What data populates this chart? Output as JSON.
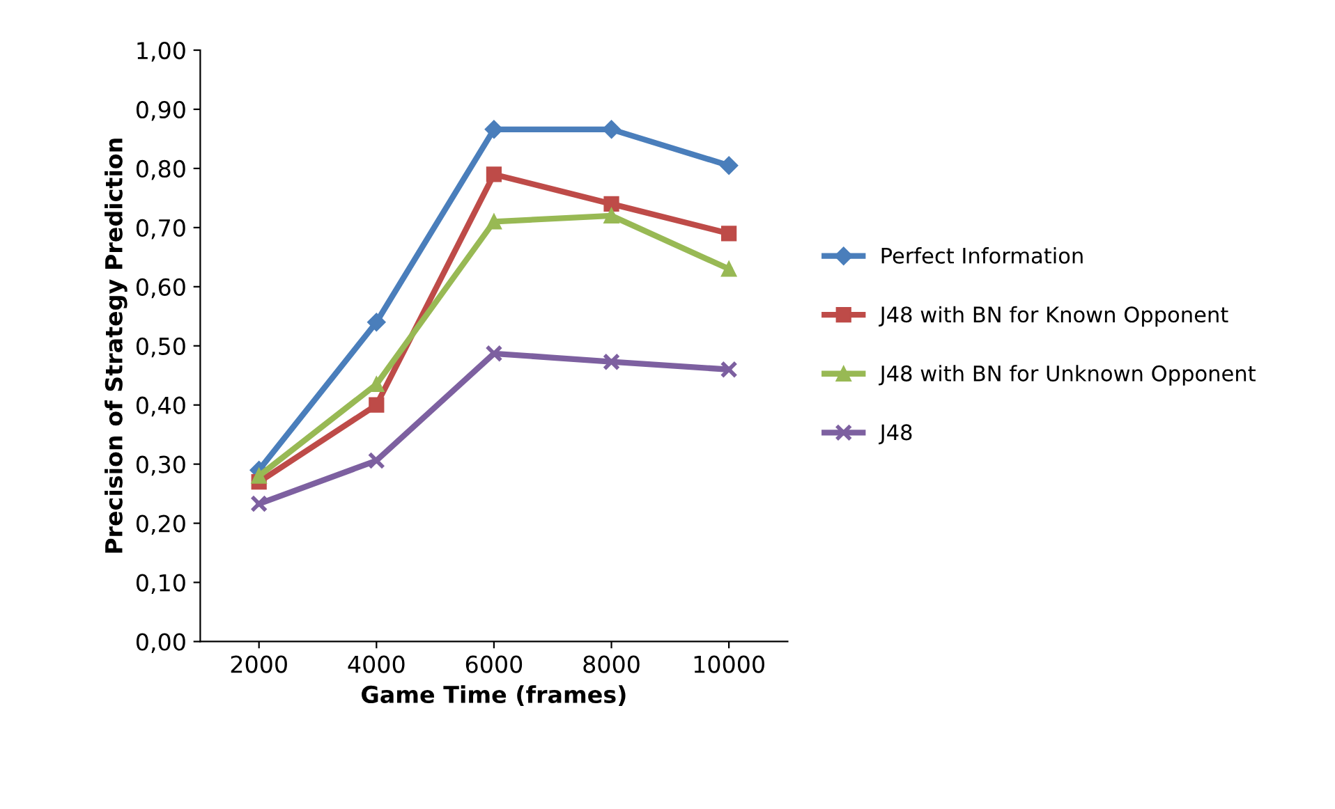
{
  "chart_data": {
    "type": "line",
    "xlabel": "Game Time (frames)",
    "ylabel": "Precision of Strategy Prediction",
    "categories": [
      "2000",
      "4000",
      "6000",
      "8000",
      "10000"
    ],
    "series": [
      {
        "name": "Perfect Information",
        "color": "#4a7ebb",
        "marker": "diamond",
        "values": [
          0.29,
          0.54,
          0.866,
          0.866,
          0.805
        ]
      },
      {
        "name": "J48 with BN for Known Opponent",
        "color": "#be4b48",
        "marker": "square",
        "values": [
          0.27,
          0.4,
          0.79,
          0.74,
          0.69
        ]
      },
      {
        "name": "J48 with BN for Unknown Opponent",
        "color": "#98b954",
        "marker": "triangle",
        "values": [
          0.28,
          0.435,
          0.71,
          0.72,
          0.63
        ]
      },
      {
        "name": "J48",
        "color": "#7d60a0",
        "marker": "cross",
        "values": [
          0.233,
          0.306,
          0.487,
          0.473,
          0.46
        ]
      }
    ],
    "ylim": [
      0,
      1
    ],
    "yticks": [
      {
        "value": 0,
        "label": "0,00"
      },
      {
        "value": 0.1,
        "label": "0,10"
      },
      {
        "value": 0.2,
        "label": "0,20"
      },
      {
        "value": 0.3,
        "label": "0,30"
      },
      {
        "value": 0.4,
        "label": "0,40"
      },
      {
        "value": 0.5,
        "label": "0,50"
      },
      {
        "value": 0.6,
        "label": "0,60"
      },
      {
        "value": 0.7,
        "label": "0,70"
      },
      {
        "value": 0.8,
        "label": "0,80"
      },
      {
        "value": 0.9,
        "label": "0,90"
      },
      {
        "value": 1.0,
        "label": "1,00"
      }
    ],
    "grid": false,
    "legend": "right",
    "line_style": "solid"
  }
}
